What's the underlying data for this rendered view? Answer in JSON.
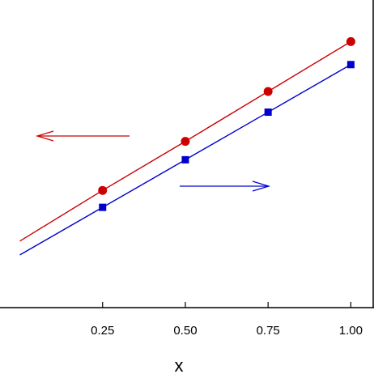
{
  "chart_data": {
    "type": "line",
    "xlabel": "x",
    "x_ticks": [
      "0.25",
      "0.50",
      "0.75",
      "1.00"
    ],
    "x_tick_values": [
      0.25,
      0.5,
      0.75,
      1.0
    ],
    "xlim": [
      -0.06,
      1.07
    ],
    "grid": false,
    "series": [
      {
        "axis": "left",
        "marker": "circle",
        "color": "#cc0000",
        "x": [
          0.0,
          0.25,
          0.5,
          0.75,
          1.0
        ],
        "y": [
          0.0,
          0.305,
          0.6,
          0.9,
          1.2
        ],
        "ylim": [
          -0.4,
          1.45
        ],
        "arrow_direction": "left"
      },
      {
        "axis": "right",
        "marker": "square",
        "color": "#0000cc",
        "x": [
          0.0,
          0.25,
          0.5,
          0.75,
          1.0
        ],
        "y": [
          0.0,
          0.28,
          0.56,
          0.84,
          1.12
        ],
        "ylim": [
          -0.31,
          1.5
        ],
        "arrow_direction": "right"
      }
    ]
  }
}
